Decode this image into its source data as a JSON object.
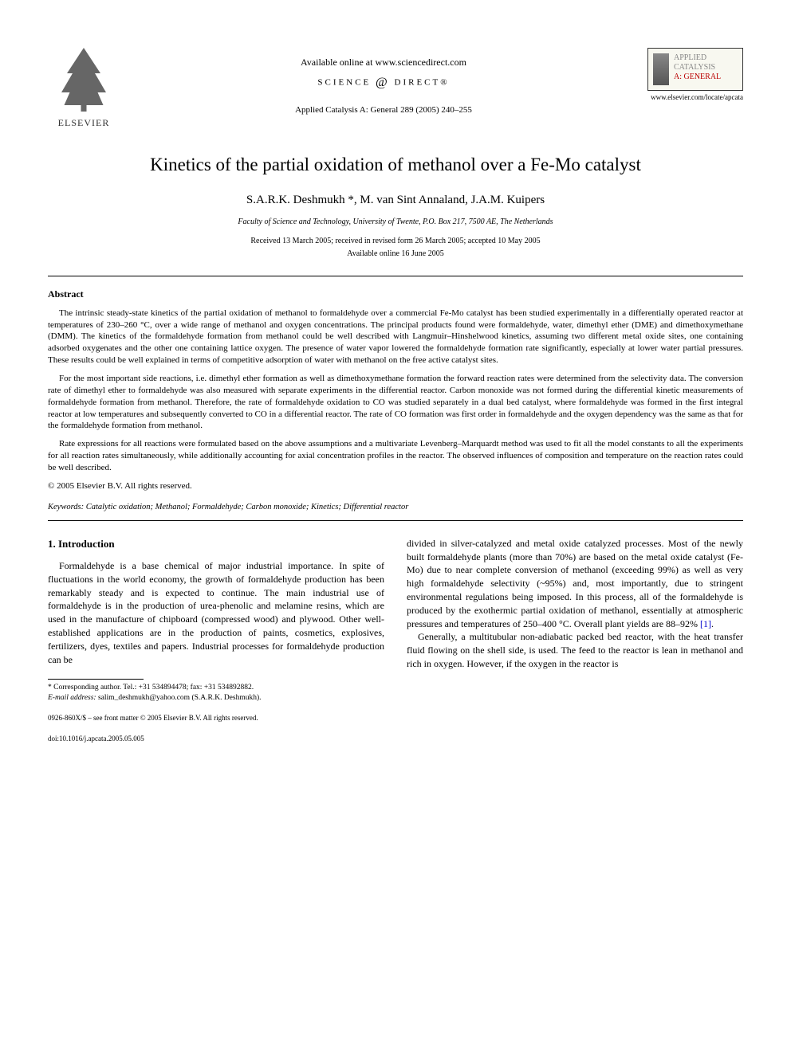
{
  "header": {
    "publisher": "ELSEVIER",
    "available_online": "Available online at www.sciencedirect.com",
    "sciencedirect": "SCIENCE",
    "sciencedirect2": "DIRECT®",
    "journal_ref": "Applied Catalysis A: General 289 (2005) 240–255",
    "journal_box_applied": "APPLIED",
    "journal_box_catalysis": "CATALYSIS",
    "journal_box_general": "A: GENERAL",
    "locate_url": "www.elsevier.com/locate/apcata"
  },
  "article": {
    "title": "Kinetics of the partial oxidation of methanol over a Fe-Mo catalyst",
    "authors": "S.A.R.K. Deshmukh *, M. van Sint Annaland, J.A.M. Kuipers",
    "affiliation": "Faculty of Science and Technology, University of Twente, P.O. Box 217, 7500 AE, The Netherlands",
    "dates": "Received 13 March 2005; received in revised form 26 March 2005; accepted 10 May 2005",
    "dates2": "Available online 16 June 2005"
  },
  "abstract": {
    "heading": "Abstract",
    "p1": "The intrinsic steady-state kinetics of the partial oxidation of methanol to formaldehyde over a commercial Fe-Mo catalyst has been studied experimentally in a differentially operated reactor at temperatures of 230–260 °C, over a wide range of methanol and oxygen concentrations. The principal products found were formaldehyde, water, dimethyl ether (DME) and dimethoxymethane (DMM). The kinetics of the formaldehyde formation from methanol could be well described with Langmuir–Hinshelwood kinetics, assuming two different metal oxide sites, one containing adsorbed oxygenates and the other one containing lattice oxygen. The presence of water vapor lowered the formaldehyde formation rate significantly, especially at lower water partial pressures. These results could be well explained in terms of competitive adsorption of water with methanol on the free active catalyst sites.",
    "p2": "For the most important side reactions, i.e. dimethyl ether formation as well as dimethoxymethane formation the forward reaction rates were determined from the selectivity data. The conversion rate of dimethyl ether to formaldehyde was also measured with separate experiments in the differential reactor. Carbon monoxide was not formed during the differential kinetic measurements of formaldehyde formation from methanol. Therefore, the rate of formaldehyde oxidation to CO was studied separately in a dual bed catalyst, where formaldehyde was formed in the first integral reactor at low temperatures and subsequently converted to CO in a differential reactor. The rate of CO formation was first order in formaldehyde and the oxygen dependency was the same as that for the formaldehyde formation from methanol.",
    "p3": "Rate expressions for all reactions were formulated based on the above assumptions and a multivariate Levenberg–Marquardt method was used to fit all the model constants to all the experiments for all reaction rates simultaneously, while additionally accounting for axial concentration profiles in the reactor. The observed influences of composition and temperature on the reaction rates could be well described.",
    "copyright": "© 2005 Elsevier B.V. All rights reserved."
  },
  "keywords": {
    "label": "Keywords:",
    "text": " Catalytic oxidation; Methanol; Formaldehyde; Carbon monoxide; Kinetics; Differential reactor"
  },
  "intro": {
    "heading": "1. Introduction",
    "p1": "Formaldehyde is a base chemical of major industrial importance. In spite of fluctuations in the world economy, the growth of formaldehyde production has been remarkably steady and is expected to continue. The main industrial use of formaldehyde is in the production of urea-phenolic and melamine resins, which are used in the manufacture of chipboard (compressed wood) and plywood. Other well-established applications are in the production of paints, cosmetics, explosives, fertilizers, dyes, textiles and papers. Industrial processes for formaldehyde production can be",
    "p2a": "divided in silver-catalyzed and metal oxide catalyzed processes. Most of the newly built formaldehyde plants (more than 70%) are based on the metal oxide catalyst (Fe-Mo) due to near complete conversion of methanol (exceeding 99%) as well as very high formaldehyde selectivity (~95%) and, most importantly, due to stringent environmental regulations being imposed. In this process, all of the formaldehyde is produced by the exothermic partial oxidation of methanol, essentially at atmospheric pressures and temperatures of 250–400 °C. Overall plant yields are 88–92% ",
    "ref1": "[1]",
    "p2b": ".",
    "p3": "Generally, a multitubular non-adiabatic packed bed reactor, with the heat transfer fluid flowing on the shell side, is used. The feed to the reactor is lean in methanol and rich in oxygen. However, if the oxygen in the reactor is"
  },
  "footnote": {
    "corr": "* Corresponding author. Tel.: +31 534894478; fax: +31 534892882.",
    "email_label": "E-mail address:",
    "email": " salim_deshmukh@yahoo.com (S.A.R.K. Deshmukh)."
  },
  "bottom": {
    "issn": "0926-860X/$ – see front matter © 2005 Elsevier B.V. All rights reserved.",
    "doi": "doi:10.1016/j.apcata.2005.05.005"
  }
}
